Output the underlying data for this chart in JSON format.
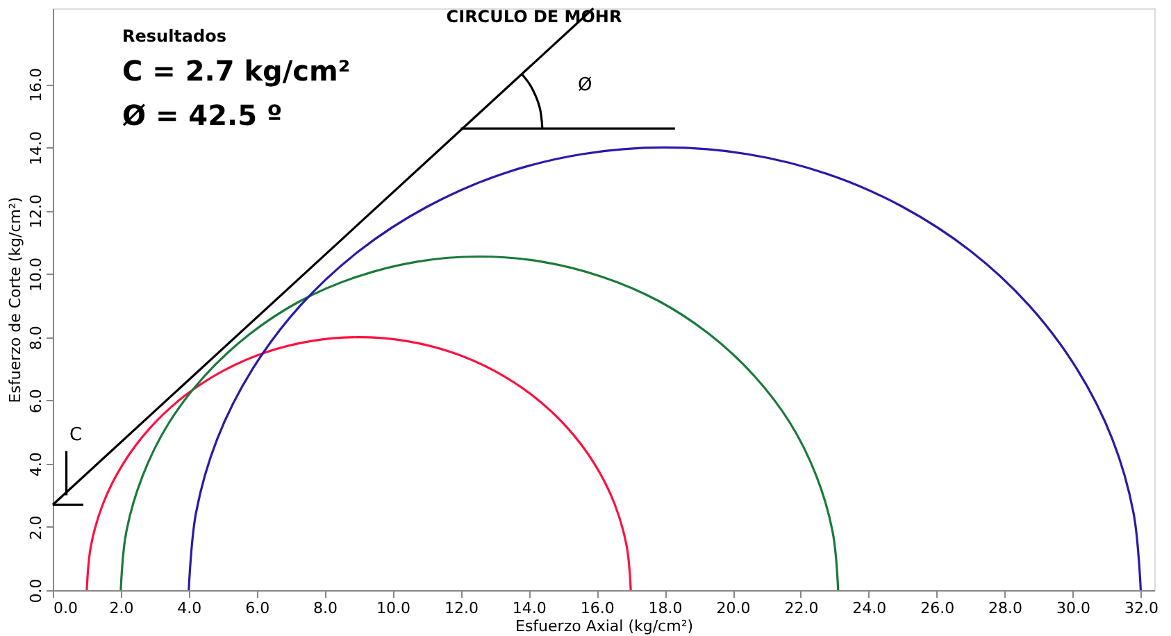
{
  "chart_data": {
    "type": "line",
    "title": "CIRCULO DE MOHR",
    "xlabel": "Esfuerzo Axial (kg/cm²)",
    "ylabel": "Esfuerzo de Corte (kg/cm²)",
    "annotations": [
      "Resultados",
      "C = 2.7 kg/cm²",
      "Ø = 42.5 º",
      "Ø",
      "C"
    ],
    "series": [
      {
        "color": "#ff1040",
        "x": [
          1.0,
          1.12,
          1.48,
          2.07,
          2.87,
          3.86,
          5.0,
          6.26,
          7.61,
          9.0,
          10.39,
          11.74,
          13.0,
          14.14,
          15.13,
          15.93,
          16.52,
          16.88,
          17.0
        ],
        "values": [
          0,
          1.39,
          2.74,
          4.0,
          5.14,
          6.13,
          6.93,
          7.52,
          7.88,
          8.0,
          7.88,
          7.52,
          6.93,
          6.13,
          5.14,
          4.0,
          2.74,
          1.39,
          0
        ]
      },
      {
        "color": "#1a7a3a",
        "x": [
          2.0,
          2.16,
          2.64,
          3.41,
          4.47,
          5.77,
          7.27,
          8.94,
          10.72,
          12.55,
          14.38,
          16.16,
          17.83,
          19.33,
          20.63,
          21.69,
          22.46,
          22.94,
          23.1
        ],
        "values": [
          0,
          1.83,
          3.61,
          5.28,
          6.78,
          8.08,
          9.14,
          9.91,
          10.39,
          10.55,
          10.39,
          9.91,
          9.14,
          8.08,
          6.78,
          5.28,
          3.61,
          1.83,
          0
        ]
      },
      {
        "color": "#2a1aa8",
        "x": [
          4.0,
          4.21,
          4.84,
          5.88,
          7.28,
          9.0,
          11.0,
          13.21,
          15.57,
          18.0,
          20.43,
          22.79,
          25.0,
          27.0,
          28.72,
          30.12,
          31.16,
          31.79,
          32.0
        ],
        "values": [
          0,
          2.43,
          4.79,
          7.0,
          9.0,
          10.72,
          12.12,
          13.16,
          13.79,
          14.0,
          13.79,
          13.16,
          12.12,
          10.72,
          9.0,
          7.0,
          4.79,
          2.43,
          0
        ]
      },
      {
        "color": "#000000",
        "x": [
          0,
          15.9
        ],
        "values": [
          2.7,
          18.4
        ]
      },
      {
        "color": "#000000",
        "x": [
          12.0,
          18.3
        ],
        "values": [
          14.6,
          14.6
        ]
      },
      {
        "color": "#000000",
        "x": [
          14.4,
          14.32,
          14.08,
          13.78
        ],
        "values": [
          14.6,
          15.27,
          15.9,
          16.34
        ]
      },
      {
        "color": "#000000",
        "x": [
          0.4,
          0.4
        ],
        "values": [
          4.4,
          3.0
        ]
      },
      {
        "color": "#000000",
        "x": [
          0,
          0.9
        ],
        "values": [
          2.7,
          2.7
        ]
      }
    ],
    "xlim": [
      0,
      32.4
    ],
    "ylim": [
      0,
      18.4
    ],
    "xticks": [
      {
        "value": 0,
        "label": "0.0"
      },
      {
        "value": 2,
        "label": "2.0"
      },
      {
        "value": 4,
        "label": "4.0"
      },
      {
        "value": 6,
        "label": "6.0"
      },
      {
        "value": 8,
        "label": "8.0"
      },
      {
        "value": 10,
        "label": "10.0"
      },
      {
        "value": 12,
        "label": "12.0"
      },
      {
        "value": 14,
        "label": "14.0"
      },
      {
        "value": 16,
        "label": "16.0"
      },
      {
        "value": 18,
        "label": "18.0"
      },
      {
        "value": 20,
        "label": "20.0"
      },
      {
        "value": 22,
        "label": "22.0"
      },
      {
        "value": 24,
        "label": "24.0"
      },
      {
        "value": 26,
        "label": "26.0"
      },
      {
        "value": 28,
        "label": "28.0"
      },
      {
        "value": 30,
        "label": "30.0"
      },
      {
        "value": 32,
        "label": "32.0"
      }
    ],
    "yticks": [
      {
        "value": 0,
        "label": "0.0"
      },
      {
        "value": 2,
        "label": "2.0"
      },
      {
        "value": 4,
        "label": "4.0"
      },
      {
        "value": 6,
        "label": "6.0"
      },
      {
        "value": 8,
        "label": "8.0"
      },
      {
        "value": 10,
        "label": "10.0"
      },
      {
        "value": 12,
        "label": "12.0"
      },
      {
        "value": 14,
        "label": "14.0"
      },
      {
        "value": 16,
        "label": "16.0"
      }
    ],
    "grid": false,
    "legend": false,
    "marker": "none",
    "line_style": "solid"
  }
}
